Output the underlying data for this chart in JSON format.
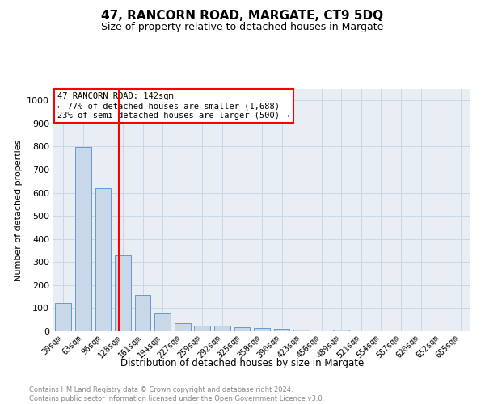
{
  "title": "47, RANCORN ROAD, MARGATE, CT9 5DQ",
  "subtitle": "Size of property relative to detached houses in Margate",
  "xlabel": "Distribution of detached houses by size in Margate",
  "ylabel": "Number of detached properties",
  "footnote": "Contains HM Land Registry data © Crown copyright and database right 2024.\nContains public sector information licensed under the Open Government Licence v3.0.",
  "categories": [
    "30sqm",
    "63sqm",
    "96sqm",
    "128sqm",
    "161sqm",
    "194sqm",
    "227sqm",
    "259sqm",
    "292sqm",
    "325sqm",
    "358sqm",
    "390sqm",
    "423sqm",
    "456sqm",
    "489sqm",
    "521sqm",
    "554sqm",
    "587sqm",
    "620sqm",
    "652sqm",
    "685sqm"
  ],
  "values": [
    122,
    797,
    621,
    330,
    158,
    80,
    36,
    26,
    25,
    18,
    15,
    9,
    8,
    0,
    7,
    0,
    0,
    0,
    0,
    0,
    0
  ],
  "bar_color": "#c8d8e8",
  "bar_edge_color": "#6699cc",
  "marker_bin_index": 3,
  "marker_color": "red",
  "annotation_title": "47 RANCORN ROAD: 142sqm",
  "annotation_line1": "← 77% of detached houses are smaller (1,688)",
  "annotation_line2": "23% of semi-detached houses are larger (500) →",
  "annotation_box_color": "white",
  "annotation_box_edge_color": "red",
  "ylim": [
    0,
    1050
  ],
  "yticks": [
    0,
    100,
    200,
    300,
    400,
    500,
    600,
    700,
    800,
    900,
    1000
  ],
  "grid_color": "#c8d8e8",
  "background_color": "#e8eef4"
}
